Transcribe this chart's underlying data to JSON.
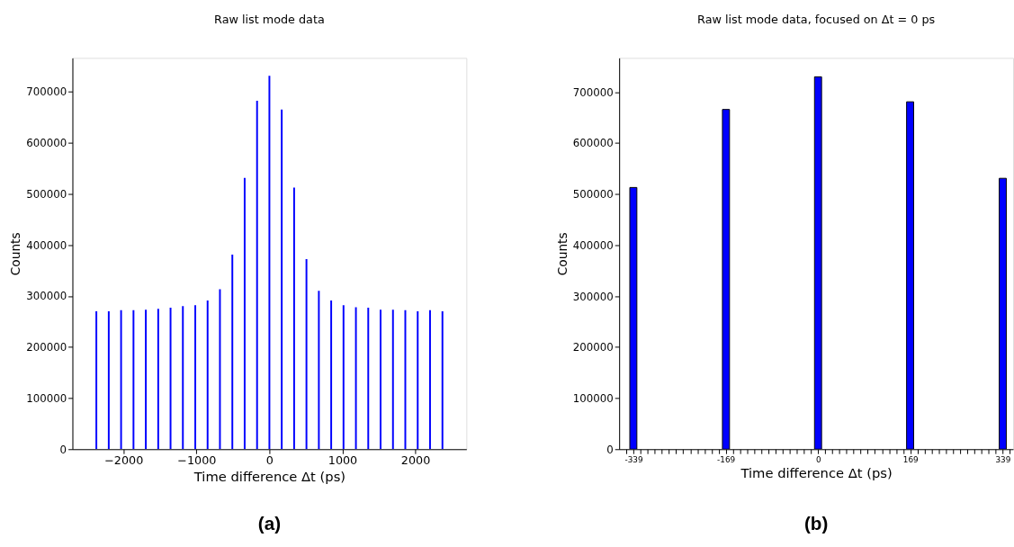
{
  "chart_data": [
    {
      "type": "bar",
      "title": "Raw list mode data",
      "xlabel": "Time difference Δt (ps)",
      "ylabel": "Counts",
      "annotations": [
        "(a)"
      ],
      "grid": false,
      "x": [
        -2372,
        -2202,
        -2033,
        -1863,
        -1694,
        -1524,
        -1355,
        -1186,
        -1016,
        -847,
        -678,
        -508,
        -339,
        -169,
        0,
        169,
        339,
        508,
        678,
        847,
        1016,
        1186,
        1355,
        1524,
        1694,
        1863,
        2033,
        2202,
        2372
      ],
      "series": [
        {
          "color": "#0000ff",
          "values": [
            270000,
            270000,
            272000,
            272000,
            273000,
            275000,
            277000,
            280000,
            282000,
            291000,
            313000,
            381000,
            531000,
            682000,
            731000,
            665000,
            512000,
            372000,
            310000,
            291000,
            282000,
            278000,
            277000,
            273000,
            273000,
            272000,
            270000,
            272000,
            270000
          ]
        }
      ],
      "xlim": [
        -2700,
        2700
      ],
      "ylim": [
        0,
        766000
      ],
      "xticks": [
        {
          "value": -2000,
          "label": "−2000"
        },
        {
          "value": -1000,
          "label": "−1000"
        },
        0,
        1000,
        2000
      ],
      "yticks": [
        0,
        100000,
        200000,
        300000,
        400000,
        500000,
        600000,
        700000
      ]
    },
    {
      "type": "bar",
      "title": "Raw list mode data, focused on Δt = 0 ps",
      "xlabel": "Time difference Δt (ps)",
      "ylabel": "Counts",
      "annotations": [
        "(b)"
      ],
      "grid": false,
      "x": [
        -339,
        -169,
        0,
        169,
        339
      ],
      "series": [
        {
          "color": "#0000ff",
          "values": [
            513000,
            666000,
            730000,
            681000,
            531000
          ]
        }
      ],
      "xlim": [
        -365,
        358
      ],
      "ylim": [
        0,
        767000
      ],
      "xticks": [
        {
          "value": -351.8,
          "label": null
        },
        {
          "value": -338.8,
          "label": "-339"
        },
        {
          "value": -325.8,
          "label": null
        },
        {
          "value": -312.7,
          "label": null
        },
        {
          "value": -299.7,
          "label": null
        },
        {
          "value": -286.7,
          "label": null
        },
        {
          "value": -273.6,
          "label": null
        },
        {
          "value": -260.6,
          "label": null
        },
        {
          "value": -247.6,
          "label": null
        },
        {
          "value": -234.5,
          "label": null
        },
        {
          "value": -221.5,
          "label": null
        },
        {
          "value": -208.5,
          "label": null
        },
        {
          "value": -195.5,
          "label": null
        },
        {
          "value": -182.4,
          "label": null
        },
        {
          "value": -169.4,
          "label": "-169"
        },
        {
          "value": -156.4,
          "label": null
        },
        {
          "value": -143.3,
          "label": null
        },
        {
          "value": -130.3,
          "label": null
        },
        {
          "value": -117.3,
          "label": null
        },
        {
          "value": -104.2,
          "label": null
        },
        {
          "value": -91.2,
          "label": null
        },
        {
          "value": -78.2,
          "label": null
        },
        {
          "value": -65.2,
          "label": null
        },
        {
          "value": -52.1,
          "label": null
        },
        {
          "value": -39.1,
          "label": null
        },
        {
          "value": -26.1,
          "label": null
        },
        {
          "value": -13.0,
          "label": null
        },
        0,
        {
          "value": 13.0,
          "label": null
        },
        {
          "value": 26.1,
          "label": null
        },
        {
          "value": 39.1,
          "label": null
        },
        {
          "value": 52.1,
          "label": null
        },
        {
          "value": 65.2,
          "label": null
        },
        {
          "value": 78.2,
          "label": null
        },
        {
          "value": 91.2,
          "label": null
        },
        {
          "value": 104.2,
          "label": null
        },
        {
          "value": 117.3,
          "label": null
        },
        {
          "value": 130.3,
          "label": null
        },
        {
          "value": 143.3,
          "label": null
        },
        {
          "value": 156.4,
          "label": null
        },
        {
          "value": 169.4,
          "label": "169"
        },
        {
          "value": 182.4,
          "label": null
        },
        {
          "value": 195.5,
          "label": null
        },
        {
          "value": 208.5,
          "label": null
        },
        {
          "value": 221.5,
          "label": null
        },
        {
          "value": 234.5,
          "label": null
        },
        {
          "value": 247.6,
          "label": null
        },
        {
          "value": 260.6,
          "label": null
        },
        {
          "value": 273.6,
          "label": null
        },
        {
          "value": 286.7,
          "label": null
        },
        {
          "value": 299.7,
          "label": null
        },
        {
          "value": 312.7,
          "label": null
        },
        {
          "value": 325.8,
          "label": null
        },
        {
          "value": 338.8,
          "label": "339"
        },
        {
          "value": 351.8,
          "label": null
        }
      ],
      "yticks": [
        0,
        100000,
        200000,
        300000,
        400000,
        500000,
        600000,
        700000
      ]
    }
  ]
}
